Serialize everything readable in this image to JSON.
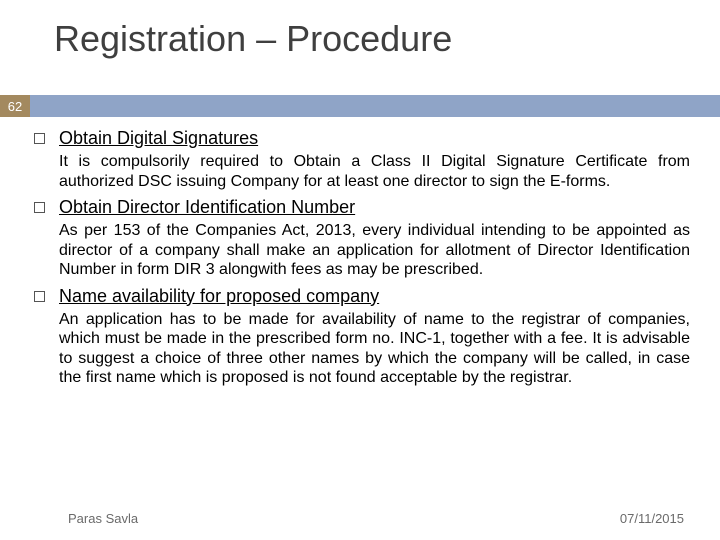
{
  "title": "Registration – Procedure",
  "page_number": "62",
  "colors": {
    "band": "#8fa4c7",
    "page_num_box": "#a3895f",
    "title_text": "#3f3f3f",
    "body_text": "#000000",
    "footer_text": "#6a6a6a",
    "bullet_border": "#545454"
  },
  "typography": {
    "title_fontsize": 36,
    "item_title_fontsize": 18,
    "body_fontsize": 16,
    "footer_fontsize": 13
  },
  "items": [
    {
      "title": "Obtain Digital Signatures",
      "body": "It is compulsorily required to Obtain a Class II Digital Signature Certificate from authorized DSC issuing Company for at least one director to sign the E-forms."
    },
    {
      "title": "Obtain Director Identification Number",
      "body": "As per 153 of the Companies Act, 2013, every individual intending to be appointed as director of a company shall make an application for allotment of Director Identification Number in form DIR 3 alongwith fees as may be prescribed."
    },
    {
      "title": "Name availability for proposed company",
      "body": "An application has to be made for availability of name to the registrar of companies, which must be made in the prescribed form no. INC-1, together with a fee. It is advisable to suggest a choice of three other names by which the company will be called, in case the first name which is proposed is not found acceptable by the registrar."
    }
  ],
  "footer": {
    "author": "Paras Savla",
    "date": "07/11/2015"
  }
}
